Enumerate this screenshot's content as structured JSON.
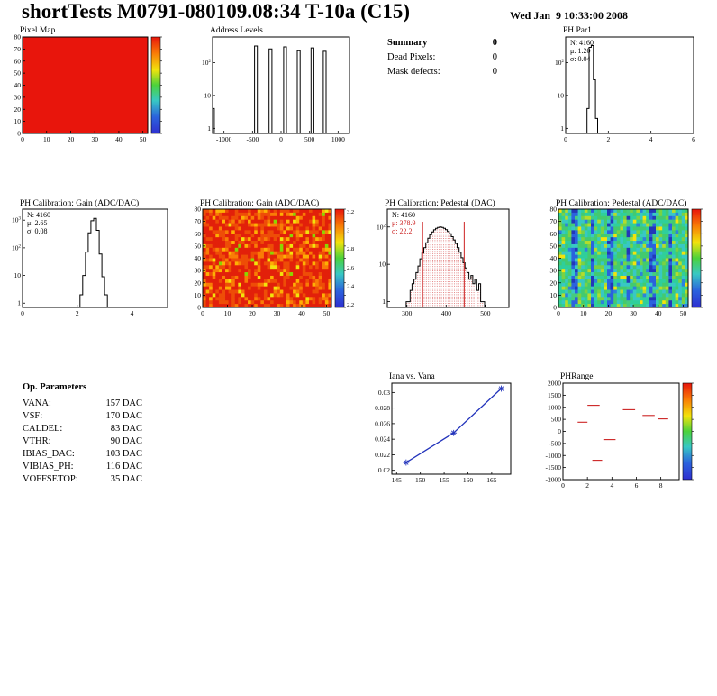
{
  "page": {
    "title": "shortTests M0791-080109.08:34 T-10a (C15)",
    "timestamp": "Wed Jan  9 10:33:00 2008"
  },
  "summary": {
    "title": "Summary",
    "title_value": "0",
    "rows": [
      {
        "label": "Dead Pixels:",
        "value": "0"
      },
      {
        "label": "Mask defects:",
        "value": "0"
      }
    ]
  },
  "op_parameters": {
    "title": "Op. Parameters",
    "rows": [
      {
        "label": "VANA:",
        "value": "157 DAC"
      },
      {
        "label": "VSF:",
        "value": "170 DAC"
      },
      {
        "label": "CALDEL:",
        "value": "83 DAC"
      },
      {
        "label": "VTHR:",
        "value": "90 DAC"
      },
      {
        "label": "IBIAS_DAC:",
        "value": "103 DAC"
      },
      {
        "label": "VIBIAS_PH:",
        "value": "116 DAC"
      },
      {
        "label": "VOFFSETOP:",
        "value": "35 DAC"
      }
    ]
  },
  "chart_data": [
    {
      "id": "pixel-map",
      "type": "heatmap",
      "title": "Pixel Map",
      "x_range": [
        0,
        52
      ],
      "x_ticks": [
        0,
        10,
        20,
        30,
        40,
        50
      ],
      "y_range": [
        0,
        80
      ],
      "y_ticks": [
        0,
        10,
        20,
        30,
        40,
        50,
        60,
        70,
        80
      ],
      "fill": "solid",
      "fill_color": "#e8150c",
      "colorbar": {
        "labels": []
      }
    },
    {
      "id": "address-levels",
      "type": "hist",
      "title": "Address Levels",
      "log_y": true,
      "y_max": 600,
      "x_range": [
        -1200,
        1200
      ],
      "x_ticks": [
        -1000,
        -500,
        0,
        500,
        1000
      ],
      "y_ticks": [
        1,
        10,
        100
      ],
      "bins": [
        [
          -1200,
          -1170,
          4
        ],
        [
          -465,
          -415,
          320
        ],
        [
          -210,
          -160,
          260
        ],
        [
          45,
          95,
          300
        ],
        [
          285,
          335,
          230
        ],
        [
          525,
          575,
          280
        ],
        [
          740,
          790,
          220
        ]
      ]
    },
    {
      "id": "ph-par1",
      "type": "hist",
      "title": "PH Par1",
      "log_y": true,
      "y_max": 600,
      "x_range": [
        0,
        6
      ],
      "x_ticks": [
        0,
        2,
        4,
        6
      ],
      "y_ticks": [
        1,
        10,
        100
      ],
      "bins": [
        [
          1.0,
          1.1,
          4
        ],
        [
          1.1,
          1.2,
          290
        ],
        [
          1.2,
          1.3,
          330
        ],
        [
          1.3,
          1.4,
          30
        ],
        [
          1.4,
          1.5,
          2
        ]
      ],
      "stats": {
        "lines": [
          "N: 4160",
          "μ: 1.20",
          "σ: 0.04"
        ]
      }
    },
    {
      "id": "gain-hist",
      "type": "hist",
      "title": "PH Calibration: Gain (ADC/DAC)",
      "log_y": true,
      "y_max": 2500,
      "x_range": [
        0,
        5.3
      ],
      "x_ticks": [
        0,
        2,
        4
      ],
      "y_ticks": [
        1,
        10,
        100,
        1000
      ],
      "bins": [
        [
          2.1,
          2.2,
          2
        ],
        [
          2.2,
          2.3,
          10
        ],
        [
          2.3,
          2.4,
          70
        ],
        [
          2.4,
          2.5,
          350
        ],
        [
          2.5,
          2.6,
          950
        ],
        [
          2.6,
          2.7,
          1150
        ],
        [
          2.7,
          2.8,
          430
        ],
        [
          2.8,
          2.9,
          60
        ],
        [
          2.9,
          3.0,
          9
        ],
        [
          3.0,
          3.1,
          2
        ]
      ],
      "stats": {
        "lines": [
          "N: 4160",
          "μ: 2.65",
          "σ: 0.08"
        ]
      }
    },
    {
      "id": "gain-map",
      "type": "heatmap",
      "title": "PH Calibration: Gain (ADC/DAC)",
      "x_range": [
        0,
        52
      ],
      "x_ticks": [
        0,
        10,
        20,
        30,
        40,
        50
      ],
      "y_range": [
        0,
        80
      ],
      "y_ticks": [
        0,
        10,
        20,
        30,
        40,
        50,
        60,
        70,
        80
      ],
      "fill": "noise-warm",
      "colorbar": {
        "labels": [
          "3.2",
          "3",
          "2.8",
          "2.6",
          "2.4",
          "2.2"
        ]
      }
    },
    {
      "id": "pedestal-hist",
      "type": "hist",
      "title": "PH Calibration: Pedestal (DAC)",
      "log_y": true,
      "y_max": 300,
      "x_range": [
        250,
        560
      ],
      "x_ticks": [
        300,
        400,
        500
      ],
      "y_ticks": [
        1,
        10,
        100
      ],
      "bin_start": 298,
      "bin_width": 5,
      "values": [
        1,
        1,
        2,
        3,
        4,
        6,
        9,
        14,
        20,
        28,
        38,
        50,
        62,
        74,
        84,
        92,
        97,
        100,
        97,
        92,
        85,
        76,
        66,
        55,
        45,
        36,
        28,
        21,
        15,
        11,
        8,
        6,
        4,
        5,
        3,
        4,
        2,
        3,
        1,
        1
      ],
      "fill": "dots",
      "vlines": [
        340,
        446
      ],
      "stats": {
        "lines": [
          "N: 4160",
          "μ: 378.9",
          "σ: 22.2"
        ],
        "colors": [
          "#000000",
          "#cc2222",
          "#cc2222"
        ]
      }
    },
    {
      "id": "pedestal-map",
      "type": "heatmap",
      "title": "PH Calibration: Pedestal (ADC/DAC)",
      "x_range": [
        0,
        52
      ],
      "x_ticks": [
        0,
        10,
        20,
        30,
        40,
        50
      ],
      "y_range": [
        0,
        80
      ],
      "y_ticks": [
        0,
        10,
        20,
        30,
        40,
        50,
        60,
        70,
        80
      ],
      "fill": "noise-cool",
      "colorbar": {
        "labels": []
      }
    },
    {
      "id": "iana-vana",
      "type": "line",
      "title": "Iana vs. Vana",
      "color": "#2233bb",
      "x_range": [
        144,
        169
      ],
      "x_ticks": [
        145,
        150,
        155,
        160,
        165
      ],
      "y_range": [
        0.0195,
        0.0312
      ],
      "y_ticks": [
        0.02,
        0.022,
        0.024,
        0.026,
        0.028,
        0.03
      ],
      "points": [
        [
          147,
          0.021
        ],
        [
          157,
          0.0248
        ],
        [
          167,
          0.0305
        ]
      ]
    },
    {
      "id": "ph-range",
      "type": "segments",
      "title": "PHRange",
      "color": "#cc2222",
      "x_range": [
        0,
        9.5
      ],
      "x_ticks": [
        0,
        2,
        4,
        6,
        8
      ],
      "y_range": [
        -2000,
        2000
      ],
      "y_ticks": [
        2000,
        1500,
        1000,
        500,
        0,
        -500,
        -1000,
        -1500,
        -2000
      ],
      "segments": [
        [
          2.0,
          3.0,
          1080
        ],
        [
          4.9,
          5.9,
          900
        ],
        [
          6.5,
          7.5,
          660
        ],
        [
          1.2,
          2.0,
          380
        ],
        [
          3.3,
          4.3,
          -340
        ],
        [
          2.4,
          3.2,
          -1200
        ],
        [
          7.8,
          8.6,
          520
        ]
      ],
      "colorbar": {
        "labels": []
      }
    }
  ]
}
